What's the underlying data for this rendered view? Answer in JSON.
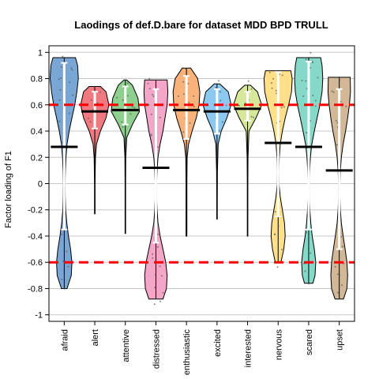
{
  "chart_data": {
    "type": "violin",
    "title": "Laodings of def.D.bare for dataset MDD BPD TRULL",
    "xlabel": "",
    "ylabel": "Factor loading of F1",
    "ylim": [
      -1.05,
      1.05
    ],
    "yticks": [
      1,
      0.8,
      0.6,
      0.4,
      0.2,
      0,
      -0.2,
      -0.4,
      -0.6,
      -0.8,
      -1
    ],
    "ytick_labels": [
      "1",
      "0.8",
      "0.6",
      "0.4",
      "0.2",
      "0",
      "-0.2",
      "-0.4",
      "-0.6",
      "-0.8",
      "-1"
    ],
    "grid": true,
    "reference_lines": [
      0.6,
      -0.6
    ],
    "reference_line_color": "#ff0000",
    "categories": [
      {
        "name": "afraid",
        "color": "#7aa6d6",
        "min": -0.8,
        "max": 0.96,
        "mean": 0.28,
        "whisker": [
          -0.35,
          0.92
        ],
        "shape": [
          [
            -0.8,
            0.2
          ],
          [
            -0.7,
            0.5
          ],
          [
            -0.6,
            0.55
          ],
          [
            -0.5,
            0.45
          ],
          [
            -0.4,
            0.3
          ],
          [
            -0.3,
            0.18
          ],
          [
            -0.2,
            0.1
          ],
          [
            -0.1,
            0.07
          ],
          [
            0.0,
            0.06
          ],
          [
            0.1,
            0.08
          ],
          [
            0.2,
            0.12
          ],
          [
            0.3,
            0.2
          ],
          [
            0.4,
            0.35
          ],
          [
            0.5,
            0.55
          ],
          [
            0.6,
            0.75
          ],
          [
            0.7,
            0.9
          ],
          [
            0.8,
            1.0
          ],
          [
            0.9,
            0.95
          ],
          [
            0.96,
            0.8
          ]
        ]
      },
      {
        "name": "alert",
        "color": "#f07a80",
        "min": -0.23,
        "max": 0.74,
        "mean": 0.55,
        "whisker": [
          0.42,
          0.7
        ],
        "shape": [
          [
            -0.23,
            0.02
          ],
          [
            -0.1,
            0.02
          ],
          [
            0.0,
            0.02
          ],
          [
            0.1,
            0.03
          ],
          [
            0.2,
            0.05
          ],
          [
            0.3,
            0.12
          ],
          [
            0.4,
            0.4
          ],
          [
            0.5,
            0.8
          ],
          [
            0.6,
            1.0
          ],
          [
            0.7,
            0.8
          ],
          [
            0.74,
            0.4
          ]
        ]
      },
      {
        "name": "attentive",
        "color": "#8fcf8f",
        "min": -0.38,
        "max": 0.79,
        "mean": 0.56,
        "whisker": [
          0.45,
          0.74
        ],
        "shape": [
          [
            -0.38,
            0.02
          ],
          [
            -0.2,
            0.02
          ],
          [
            0.0,
            0.02
          ],
          [
            0.2,
            0.03
          ],
          [
            0.35,
            0.1
          ],
          [
            0.45,
            0.5
          ],
          [
            0.55,
            1.0
          ],
          [
            0.65,
            0.9
          ],
          [
            0.75,
            0.5
          ],
          [
            0.79,
            0.1
          ]
        ]
      },
      {
        "name": "distressed",
        "color": "#f4a6c8",
        "min": -0.88,
        "max": 0.79,
        "mean": 0.12,
        "whisker": [
          -0.45,
          0.72
        ],
        "shape": [
          [
            -0.88,
            0.5
          ],
          [
            -0.8,
            0.75
          ],
          [
            -0.7,
            0.8
          ],
          [
            -0.6,
            0.7
          ],
          [
            -0.5,
            0.5
          ],
          [
            -0.4,
            0.3
          ],
          [
            -0.3,
            0.15
          ],
          [
            -0.2,
            0.08
          ],
          [
            -0.1,
            0.05
          ],
          [
            0.0,
            0.05
          ],
          [
            0.1,
            0.08
          ],
          [
            0.2,
            0.15
          ],
          [
            0.3,
            0.3
          ],
          [
            0.4,
            0.5
          ],
          [
            0.5,
            0.65
          ],
          [
            0.6,
            0.8
          ],
          [
            0.7,
            0.85
          ],
          [
            0.79,
            0.8
          ]
        ]
      },
      {
        "name": "enthusiastic",
        "color": "#f8b27a",
        "min": -0.4,
        "max": 0.88,
        "mean": 0.56,
        "whisker": [
          0.34,
          0.82
        ],
        "shape": [
          [
            -0.4,
            0.03
          ],
          [
            -0.2,
            0.03
          ],
          [
            0.0,
            0.03
          ],
          [
            0.2,
            0.05
          ],
          [
            0.3,
            0.15
          ],
          [
            0.4,
            0.4
          ],
          [
            0.5,
            0.7
          ],
          [
            0.6,
            0.9
          ],
          [
            0.7,
            0.95
          ],
          [
            0.8,
            0.8
          ],
          [
            0.88,
            0.3
          ]
        ]
      },
      {
        "name": "excited",
        "color": "#8cc8f0",
        "min": -0.27,
        "max": 0.76,
        "mean": 0.55,
        "whisker": [
          0.38,
          0.72
        ],
        "shape": [
          [
            -0.27,
            0.02
          ],
          [
            -0.1,
            0.02
          ],
          [
            0.1,
            0.03
          ],
          [
            0.3,
            0.08
          ],
          [
            0.4,
            0.3
          ],
          [
            0.5,
            0.7
          ],
          [
            0.6,
            1.0
          ],
          [
            0.7,
            0.8
          ],
          [
            0.76,
            0.2
          ]
        ]
      },
      {
        "name": "interested",
        "color": "#d8e89a",
        "min": -0.4,
        "max": 0.75,
        "mean": 0.57,
        "whisker": [
          0.48,
          0.7
        ],
        "shape": [
          [
            -0.4,
            0.02
          ],
          [
            -0.2,
            0.02
          ],
          [
            0.0,
            0.02
          ],
          [
            0.2,
            0.03
          ],
          [
            0.4,
            0.1
          ],
          [
            0.5,
            0.6
          ],
          [
            0.6,
            1.0
          ],
          [
            0.7,
            0.7
          ],
          [
            0.75,
            0.2
          ]
        ]
      },
      {
        "name": "nervous",
        "color": "#ffe08a",
        "min": -0.6,
        "max": 0.86,
        "mean": 0.31,
        "whisker": [
          -0.25,
          0.85
        ],
        "shape": [
          [
            -0.6,
            0.2
          ],
          [
            -0.5,
            0.4
          ],
          [
            -0.4,
            0.5
          ],
          [
            -0.3,
            0.45
          ],
          [
            -0.2,
            0.3
          ],
          [
            -0.1,
            0.15
          ],
          [
            0.0,
            0.06
          ],
          [
            0.1,
            0.05
          ],
          [
            0.2,
            0.08
          ],
          [
            0.3,
            0.15
          ],
          [
            0.4,
            0.3
          ],
          [
            0.5,
            0.5
          ],
          [
            0.6,
            0.75
          ],
          [
            0.7,
            0.95
          ],
          [
            0.8,
            1.0
          ],
          [
            0.86,
            0.9
          ]
        ]
      },
      {
        "name": "scared",
        "color": "#86d8c8",
        "min": -0.76,
        "max": 0.96,
        "mean": 0.28,
        "whisker": [
          -0.35,
          0.93
        ],
        "shape": [
          [
            -0.76,
            0.3
          ],
          [
            -0.7,
            0.45
          ],
          [
            -0.6,
            0.5
          ],
          [
            -0.5,
            0.4
          ],
          [
            -0.4,
            0.25
          ],
          [
            -0.3,
            0.15
          ],
          [
            -0.2,
            0.08
          ],
          [
            -0.1,
            0.05
          ],
          [
            0.0,
            0.05
          ],
          [
            0.1,
            0.07
          ],
          [
            0.2,
            0.12
          ],
          [
            0.3,
            0.22
          ],
          [
            0.4,
            0.4
          ],
          [
            0.5,
            0.6
          ],
          [
            0.6,
            0.8
          ],
          [
            0.7,
            0.95
          ],
          [
            0.8,
            1.0
          ],
          [
            0.9,
            0.95
          ],
          [
            0.96,
            0.85
          ]
        ]
      },
      {
        "name": "upset",
        "color": "#d2b896",
        "min": -0.88,
        "max": 0.81,
        "mean": 0.1,
        "whisker": [
          -0.5,
          0.72
        ],
        "shape": [
          [
            -0.88,
            0.3
          ],
          [
            -0.8,
            0.55
          ],
          [
            -0.7,
            0.6
          ],
          [
            -0.6,
            0.55
          ],
          [
            -0.5,
            0.42
          ],
          [
            -0.4,
            0.28
          ],
          [
            -0.3,
            0.15
          ],
          [
            -0.2,
            0.08
          ],
          [
            -0.1,
            0.05
          ],
          [
            0.0,
            0.05
          ],
          [
            0.1,
            0.08
          ],
          [
            0.2,
            0.15
          ],
          [
            0.3,
            0.28
          ],
          [
            0.4,
            0.45
          ],
          [
            0.5,
            0.6
          ],
          [
            0.6,
            0.72
          ],
          [
            0.7,
            0.8
          ],
          [
            0.81,
            0.78
          ]
        ]
      }
    ]
  }
}
